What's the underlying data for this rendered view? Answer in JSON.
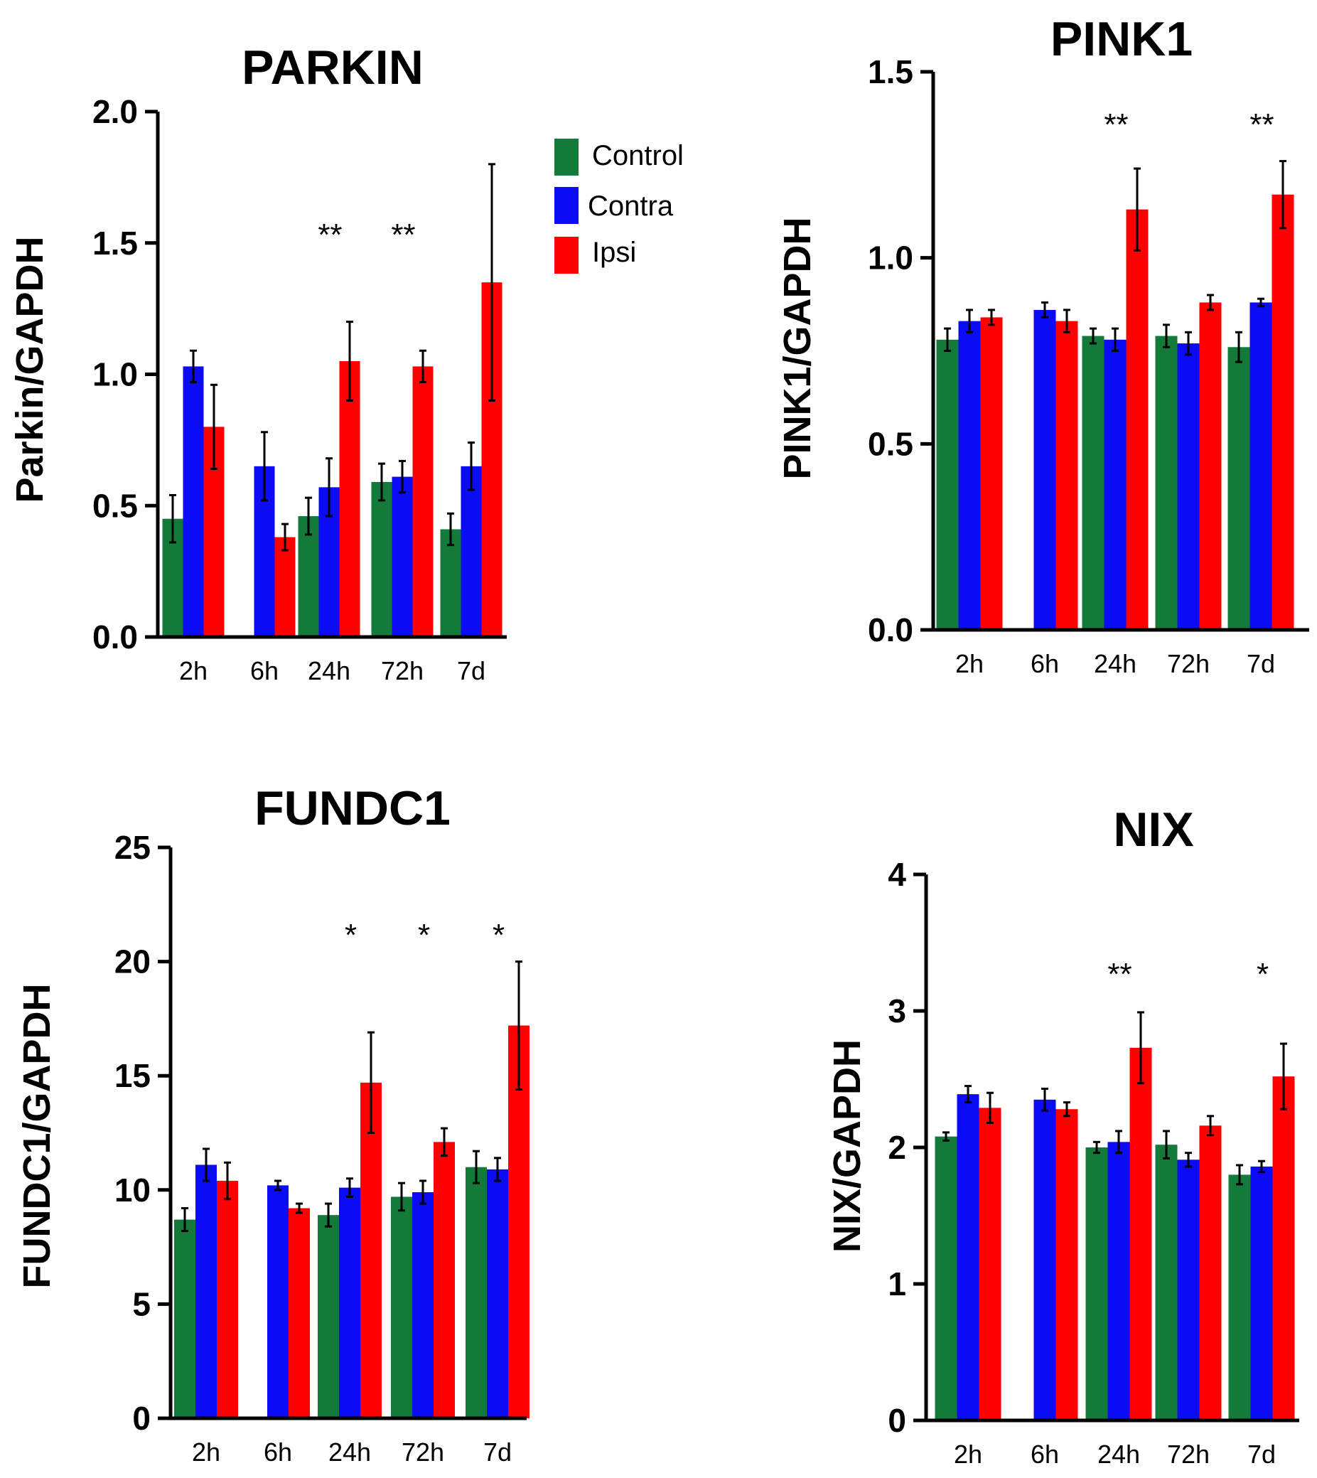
{
  "colors": {
    "Control": "#137a3a",
    "Contra": "#0b0bf5",
    "Ipsi": "#ff0000"
  },
  "legend": {
    "labels": [
      "Control",
      "Contra",
      "Ipsi"
    ],
    "location": "upper-right of PARKIN panel"
  },
  "chart_data": [
    {
      "type": "bar",
      "title": "PARKIN",
      "ylabel": "Parkin/GAPDH",
      "xlabel": "",
      "categories": [
        "2h",
        "6h",
        "24h",
        "72h",
        "7d"
      ],
      "ylim": [
        0,
        2.0
      ],
      "yticks": [
        "0.0",
        "0.5",
        "1.0",
        "1.5",
        "2.0"
      ],
      "series": [
        {
          "name": "Control",
          "values": [
            0.45,
            null,
            0.46,
            0.59,
            0.41
          ],
          "errors": [
            0.09,
            null,
            0.07,
            0.07,
            0.06
          ]
        },
        {
          "name": "Contra",
          "values": [
            1.03,
            0.65,
            0.57,
            0.61,
            0.65
          ],
          "errors": [
            0.06,
            0.13,
            0.11,
            0.06,
            0.09
          ]
        },
        {
          "name": "Ipsi",
          "values": [
            0.8,
            0.38,
            1.05,
            1.03,
            1.35
          ],
          "errors": [
            0.16,
            0.05,
            0.15,
            0.06,
            0.45
          ]
        }
      ],
      "annotations": [
        {
          "category": "24h",
          "text": "**"
        },
        {
          "category": "72h",
          "text": "**"
        }
      ]
    },
    {
      "type": "bar",
      "title": "PINK1",
      "ylabel": "PINK1/GAPDH",
      "xlabel": "",
      "categories": [
        "2h",
        "6h",
        "24h",
        "72h",
        "7d"
      ],
      "ylim": [
        0,
        1.5
      ],
      "yticks": [
        "0.0",
        "0.5",
        "1.0",
        "1.5"
      ],
      "series": [
        {
          "name": "Control",
          "values": [
            0.78,
            null,
            0.79,
            0.79,
            0.76
          ],
          "errors": [
            0.03,
            null,
            0.02,
            0.03,
            0.04
          ]
        },
        {
          "name": "Contra",
          "values": [
            0.83,
            0.86,
            0.78,
            0.77,
            0.88
          ],
          "errors": [
            0.03,
            0.02,
            0.03,
            0.03,
            0.01
          ]
        },
        {
          "name": "Ipsi",
          "values": [
            0.84,
            0.83,
            1.13,
            0.88,
            1.17
          ],
          "errors": [
            0.02,
            0.03,
            0.11,
            0.02,
            0.09
          ]
        }
      ],
      "annotations": [
        {
          "category": "24h",
          "text": "**"
        },
        {
          "category": "7d",
          "text": "**"
        }
      ]
    },
    {
      "type": "bar",
      "title": "FUNDC1",
      "ylabel": "FUNDC1/GAPDH",
      "xlabel": "",
      "categories": [
        "2h",
        "6h",
        "24h",
        "72h",
        "7d"
      ],
      "ylim": [
        0,
        25
      ],
      "yticks": [
        "0",
        "5",
        "10",
        "15",
        "20",
        "25"
      ],
      "series": [
        {
          "name": "Control",
          "values": [
            8.7,
            null,
            8.9,
            9.7,
            11.0
          ],
          "errors": [
            0.5,
            null,
            0.5,
            0.6,
            0.7
          ]
        },
        {
          "name": "Contra",
          "values": [
            11.1,
            10.2,
            10.1,
            9.9,
            10.9
          ],
          "errors": [
            0.7,
            0.2,
            0.4,
            0.5,
            0.5
          ]
        },
        {
          "name": "Ipsi",
          "values": [
            10.4,
            9.2,
            14.7,
            12.1,
            17.2
          ],
          "errors": [
            0.8,
            0.2,
            2.2,
            0.6,
            2.8
          ]
        }
      ],
      "annotations": [
        {
          "category": "24h",
          "text": "*"
        },
        {
          "category": "72h",
          "text": "*"
        },
        {
          "category": "7d",
          "text": "*"
        }
      ]
    },
    {
      "type": "bar",
      "title": "NIX",
      "ylabel": "NIX/GAPDH",
      "xlabel": "",
      "categories": [
        "2h",
        "6h",
        "24h",
        "72h",
        "7d"
      ],
      "ylim": [
        0,
        4
      ],
      "yticks": [
        "0",
        "1",
        "2",
        "3",
        "4"
      ],
      "series": [
        {
          "name": "Control",
          "values": [
            2.08,
            null,
            2.0,
            2.02,
            1.8
          ],
          "errors": [
            0.03,
            null,
            0.04,
            0.1,
            0.07
          ]
        },
        {
          "name": "Contra",
          "values": [
            2.39,
            2.35,
            2.04,
            1.91,
            1.86
          ],
          "errors": [
            0.06,
            0.08,
            0.08,
            0.05,
            0.04
          ]
        },
        {
          "name": "Ipsi",
          "values": [
            2.29,
            2.28,
            2.73,
            2.16,
            2.52
          ],
          "errors": [
            0.11,
            0.05,
            0.26,
            0.07,
            0.24
          ]
        }
      ],
      "annotations": [
        {
          "category": "24h",
          "text": "**"
        },
        {
          "category": "7d",
          "text": "*"
        }
      ]
    }
  ]
}
